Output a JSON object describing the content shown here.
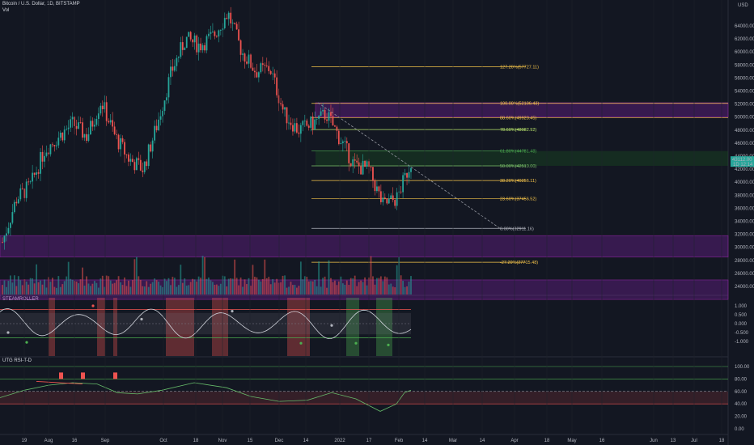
{
  "header": {
    "symbol_line": "Bitcoin / U.S. Dollar, 1D, BITSTAMP",
    "vol_label": "Vol",
    "currency": "USD"
  },
  "panes": {
    "steamroller_title": "STEAMROLLER",
    "rsi_title": "UTG RSI-T-D"
  },
  "price_axis": {
    "ticks": [
      "64000.00",
      "62000.00",
      "60000.00",
      "58000.00",
      "56000.00",
      "54000.00",
      "52000.00",
      "50000.00",
      "48000.00",
      "46000.00",
      "44000.00",
      "42000.00",
      "40000.00",
      "38000.00",
      "36000.00",
      "34000.00",
      "32000.00",
      "30000.00",
      "28000.00",
      "26000.00",
      "24000.00"
    ],
    "current_price": "43112.00",
    "current_sub": "1D 12:14"
  },
  "steam_axis": {
    "ticks": [
      "1.000",
      "0.500",
      "0.000",
      "-0.500",
      "-1.000"
    ]
  },
  "rsi_axis": {
    "ticks": [
      "100.00",
      "80.00",
      "60.00",
      "40.00",
      "20.00",
      "0.00"
    ]
  },
  "time_axis": {
    "labels": [
      "19",
      "Aug",
      "16",
      "Sep",
      "Oct",
      "18",
      "Nov",
      "15",
      "Dec",
      "14",
      "2022",
      "17",
      "Feb",
      "14",
      "Mar",
      "14",
      "Apr",
      "18",
      "May",
      "16",
      "Jun",
      "13",
      "Jul",
      "18"
    ]
  },
  "fib_levels": [
    {
      "label": "127.20%(57727.11)",
      "price": 57727.11,
      "color": "#f5c44a"
    },
    {
      "label": "100.00%(52106.43)",
      "price": 52106.43,
      "color": "#f5c44a"
    },
    {
      "label": "88.60%(49923.45)",
      "price": 49923.45,
      "color": "#f5c44a"
    },
    {
      "label": "78.60%(48082.92)",
      "price": 48082.92,
      "color": "#b7e36b"
    },
    {
      "label": "61.80%(44781.48)",
      "price": 44781.48,
      "color": "#4caf50"
    },
    {
      "label": "50.00%(42510.00)",
      "price": 42510.0,
      "color": "#7cc36a"
    },
    {
      "label": "38.20%(40256.11)",
      "price": 40256.11,
      "color": "#f5c44a"
    },
    {
      "label": "23.60%(37456.52)",
      "price": 37456.52,
      "color": "#f5c44a"
    },
    {
      "label": "0.00%(32911.16)",
      "price": 32911.16,
      "color": "#b2b5be"
    },
    {
      "label": "-27.20%(27715.48)",
      "price": 27715.48,
      "color": "#f5c44a"
    }
  ],
  "chart_data": {
    "type": "candlestick",
    "title": "Bitcoin / U.S. Dollar, 1D, BITSTAMP",
    "x_range": [
      "Jul 2021",
      "Jul 2022"
    ],
    "ylim": [
      23000,
      66000
    ],
    "price_close_path": [
      [
        "Jul 19",
        30800
      ],
      [
        "Jul 26",
        37500
      ],
      [
        "Aug 2",
        39500
      ],
      [
        "Aug 9",
        45000
      ],
      [
        "Aug 16",
        47000
      ],
      [
        "Aug 23",
        49000
      ],
      [
        "Aug 30",
        47000
      ],
      [
        "Sep 6",
        52500
      ],
      [
        "Sep 13",
        47000
      ],
      [
        "Sep 20",
        43500
      ],
      [
        "Sep 27",
        42000
      ],
      [
        "Oct 4",
        49000
      ],
      [
        "Oct 11",
        57000
      ],
      [
        "Oct 18",
        62000
      ],
      [
        "Oct 25",
        61000
      ],
      [
        "Nov 1",
        62500
      ],
      [
        "Nov 8",
        66000
      ],
      [
        "Nov 15",
        60000
      ],
      [
        "Nov 22",
        57000
      ],
      [
        "Nov 29",
        57500
      ],
      [
        "Dec 6",
        50500
      ],
      [
        "Dec 13",
        48000
      ],
      [
        "Dec 20",
        49000
      ],
      [
        "Dec 27",
        50500
      ],
      [
        "Jan 3",
        46500
      ],
      [
        "Jan 10",
        42500
      ],
      [
        "Jan 17",
        42000
      ],
      [
        "Jan 24",
        36500
      ],
      [
        "Jan 31",
        37500
      ],
      [
        "Feb 7",
        43112
      ]
    ],
    "zones": [
      {
        "from": 28500,
        "to": 31800,
        "color": "#7b1fa2"
      },
      {
        "from": 22000,
        "to": 25000,
        "color": "#7b1fa2"
      },
      {
        "from": 50000,
        "to": 52200,
        "color": "#7b1fa2"
      }
    ],
    "rsi_levels": [
      80,
      60,
      40
    ],
    "steamroller_levels": [
      0.8,
      0,
      -0.8
    ]
  }
}
